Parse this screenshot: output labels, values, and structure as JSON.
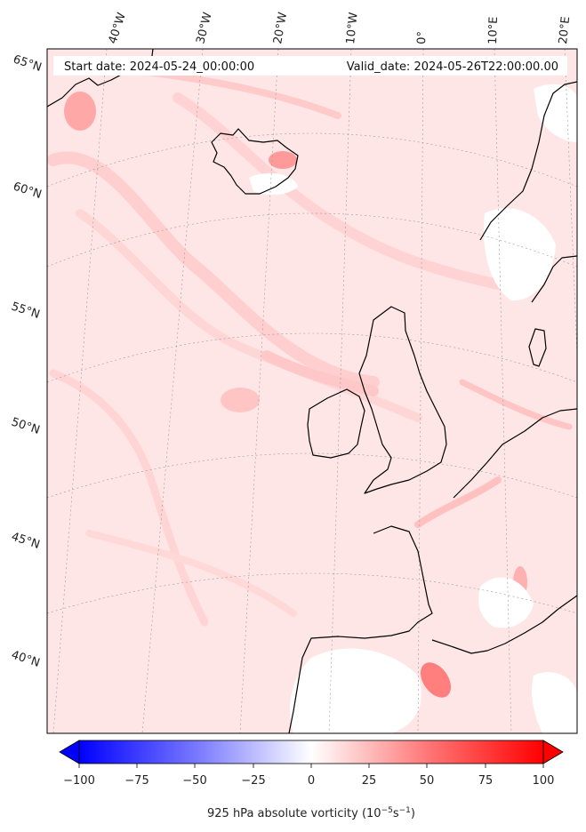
{
  "header": {
    "start_date": "Start date: 2024-05-24_00:00:00",
    "valid_date": "Valid_date: 2024-05-26T22:00:00.00"
  },
  "map": {
    "lon_labels": [
      "40°W",
      "30°W",
      "20°W",
      "10°W",
      "0°",
      "10°E",
      "20°E"
    ],
    "lat_labels": [
      "65°N",
      "60°N",
      "55°N",
      "50°N",
      "45°N",
      "40°N"
    ]
  },
  "colorbar": {
    "ticks": [
      "−100",
      "−75",
      "−50",
      "−25",
      "0",
      "25",
      "50",
      "75",
      "100"
    ],
    "label": "925 hPa absolute vorticity (10",
    "label_exp1": "−5",
    "label_mid": "s",
    "label_exp2": "−1",
    "label_end": ")",
    "neg_color": "#0000ff",
    "zero_color": "#ffffff",
    "pos_color": "#ff0000"
  }
}
